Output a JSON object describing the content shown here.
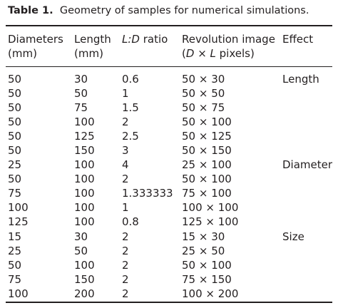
{
  "caption": {
    "label": "Table 1.",
    "text": "Geometry of samples for numerical simulations."
  },
  "header": {
    "col1": [
      "Diameters",
      "(mm)"
    ],
    "col2": [
      "Length",
      "(mm)"
    ],
    "col3": {
      "italic": "L:D",
      "rest": " ratio"
    },
    "col4": {
      "line1": "Revolution image",
      "open": "(",
      "d": "D",
      "times": " × ",
      "l": "L",
      "close": " pixels)"
    },
    "col5": "Effect"
  },
  "rows": [
    {
      "diameter": "50",
      "length": "30",
      "ratio": "0.6",
      "image": "50 × 30",
      "effect": "Length"
    },
    {
      "diameter": "50",
      "length": "50",
      "ratio": "1",
      "image": "50 × 50",
      "effect": ""
    },
    {
      "diameter": "50",
      "length": "75",
      "ratio": "1.5",
      "image": "50 × 75",
      "effect": ""
    },
    {
      "diameter": "50",
      "length": "100",
      "ratio": "2",
      "image": "50 × 100",
      "effect": ""
    },
    {
      "diameter": "50",
      "length": "125",
      "ratio": "2.5",
      "image": "50 × 125",
      "effect": ""
    },
    {
      "diameter": "50",
      "length": "150",
      "ratio": "3",
      "image": "50 × 150",
      "effect": ""
    },
    {
      "diameter": "25",
      "length": "100",
      "ratio": "4",
      "image": "25 × 100",
      "effect": "Diameter"
    },
    {
      "diameter": "50",
      "length": "100",
      "ratio": "2",
      "image": "50 × 100",
      "effect": ""
    },
    {
      "diameter": "75",
      "length": "100",
      "ratio": "1.333333",
      "image": "75 × 100",
      "effect": ""
    },
    {
      "diameter": "100",
      "length": "100",
      "ratio": "1",
      "image": "100 × 100",
      "effect": ""
    },
    {
      "diameter": "125",
      "length": "100",
      "ratio": "0.8",
      "image": "125 × 100",
      "effect": ""
    },
    {
      "diameter": "15",
      "length": "30",
      "ratio": "2",
      "image": "15 × 30",
      "effect": "Size"
    },
    {
      "diameter": "25",
      "length": "50",
      "ratio": "2",
      "image": "25 × 50",
      "effect": ""
    },
    {
      "diameter": "50",
      "length": "100",
      "ratio": "2",
      "image": "50 × 100",
      "effect": ""
    },
    {
      "diameter": "75",
      "length": "150",
      "ratio": "2",
      "image": "75 × 150",
      "effect": ""
    },
    {
      "diameter": "100",
      "length": "200",
      "ratio": "2",
      "image": "100 × 200",
      "effect": ""
    }
  ]
}
